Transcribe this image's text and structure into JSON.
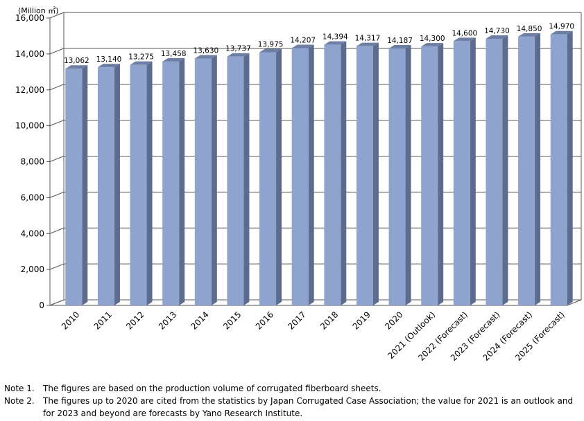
{
  "chart_data": {
    "type": "bar",
    "unit_label": "(Million ㎡)",
    "categories": [
      "2010",
      "2011",
      "2012",
      "2013",
      "2014",
      "2015",
      "2016",
      "2017",
      "2018",
      "2019",
      "2020",
      "2021 (Outlook)",
      "2022 (Forecast)",
      "2023 (Forecast)",
      "2024 (Forecast)",
      "2025 (Forecast)"
    ],
    "values": [
      13062,
      13140,
      13275,
      13458,
      13630,
      13737,
      13975,
      14207,
      14394,
      14317,
      14187,
      14300,
      14600,
      14730,
      14850,
      14970
    ],
    "value_labels": [
      "13,062",
      "13,140",
      "13,275",
      "13,458",
      "13,630",
      "13,737",
      "13,975",
      "14,207",
      "14,394",
      "14,317",
      "14,187",
      "14,300",
      "14,600",
      "14,730",
      "14,850",
      "14,970"
    ],
    "ylim": [
      0,
      16000
    ],
    "yticks": [
      0,
      2000,
      4000,
      6000,
      8000,
      10000,
      12000,
      14000,
      16000
    ],
    "ytick_labels": [
      "0",
      "2,000",
      "4,000",
      "6,000",
      "8,000",
      "10,000",
      "12,000",
      "14,000",
      "16,000"
    ],
    "grid": true,
    "bar_color": "#8fa3cf"
  },
  "notes": [
    {
      "label": "Note 1.",
      "text": "The figures are based on the production volume of corrugated fiberboard sheets."
    },
    {
      "label": "Note 2.",
      "text": "The figures up to 2020 are cited from the statistics by Japan Corrugated Case Association; the value for 2021 is an outlook and for 2023 and beyond are forecasts by Yano Research Institute."
    }
  ]
}
